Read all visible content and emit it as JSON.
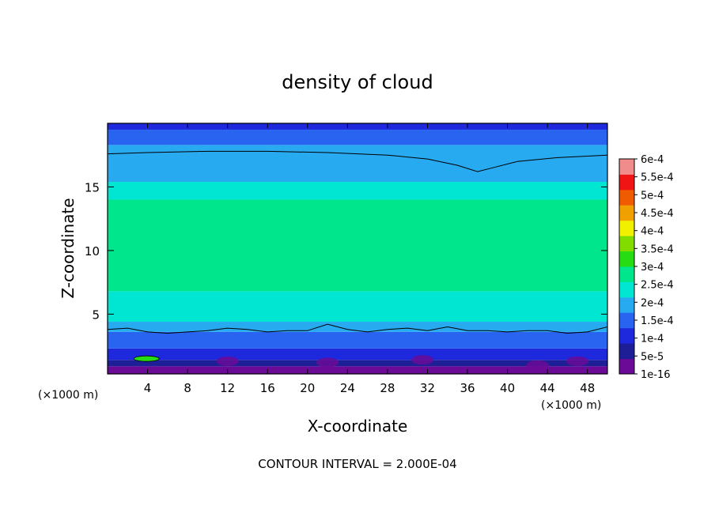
{
  "chart_data": {
    "type": "heatmap",
    "title": "density of cloud",
    "xlabel": "X-coordinate",
    "ylabel": "Z-coordinate",
    "x_unit_left": "(×1000 m)",
    "x_unit_right": "(×1000 m)",
    "footer": "CONTOUR INTERVAL = 2.000E-04",
    "xlim": [
      0,
      50
    ],
    "ylim": [
      0.3,
      20
    ],
    "x_ticks": [
      4,
      8,
      12,
      16,
      20,
      24,
      28,
      32,
      36,
      40,
      44,
      48
    ],
    "y_ticks": [
      5,
      10,
      15
    ],
    "colorbar": {
      "labels": [
        "1e-16",
        "5e-5",
        "1e-4",
        "1.5e-4",
        "2e-4",
        "2.5e-4",
        "3e-4",
        "3.5e-4",
        "4e-4",
        "4.5e-4",
        "5e-4",
        "5.5e-4",
        "6e-4"
      ],
      "colors": [
        "#6a0a96",
        "#1e1e96",
        "#1e28dc",
        "#2864f0",
        "#28aaf0",
        "#00e6d2",
        "#00e68c",
        "#28dc14",
        "#82dc00",
        "#f0f000",
        "#f0a000",
        "#f05a00",
        "#f01414",
        "#f08c8c"
      ]
    },
    "contour_lines": [
      {
        "level": "2e-4",
        "x": [
          0,
          4,
          10,
          16,
          22,
          28,
          32,
          35,
          37,
          38.5,
          41,
          45,
          50
        ],
        "z": [
          17.6,
          17.7,
          17.8,
          17.8,
          17.7,
          17.5,
          17.2,
          16.7,
          16.2,
          16.5,
          17,
          17.3,
          17.5
        ]
      },
      {
        "level": "1.5e-4",
        "x": [
          0,
          2,
          4,
          6,
          8,
          10,
          12,
          14,
          16,
          18,
          20,
          22,
          24,
          26,
          28,
          30,
          32,
          34,
          36,
          38,
          40,
          42,
          44,
          46,
          48,
          50
        ],
        "z": [
          3.8,
          3.9,
          3.6,
          3.5,
          3.6,
          3.7,
          3.9,
          3.8,
          3.6,
          3.7,
          3.7,
          4.2,
          3.8,
          3.6,
          3.8,
          3.9,
          3.7,
          4.0,
          3.7,
          3.7,
          3.6,
          3.7,
          3.7,
          3.5,
          3.6,
          4.0
        ]
      }
    ],
    "bands": [
      {
        "level": "1e-16",
        "z_top": 0.9
      },
      {
        "level": "5e-5",
        "z_top": 1.4
      },
      {
        "level": "1e-4",
        "z_top": 2.3
      },
      {
        "level": "1.5e-4",
        "z_top": 3.6
      },
      {
        "level": "2e-4",
        "z_top": 4.4
      },
      {
        "level": "2.5e-4",
        "z_top": 6.8
      },
      {
        "level": "3e-4",
        "z_top": 14.0
      },
      {
        "level": "2.5e-4",
        "z_top": 15.4
      },
      {
        "level": "2e-4",
        "z_top": 18.3
      },
      {
        "level": "1.5e-4",
        "z_top": 19.5
      },
      {
        "level": "1e-4",
        "z_top": 20
      }
    ]
  }
}
